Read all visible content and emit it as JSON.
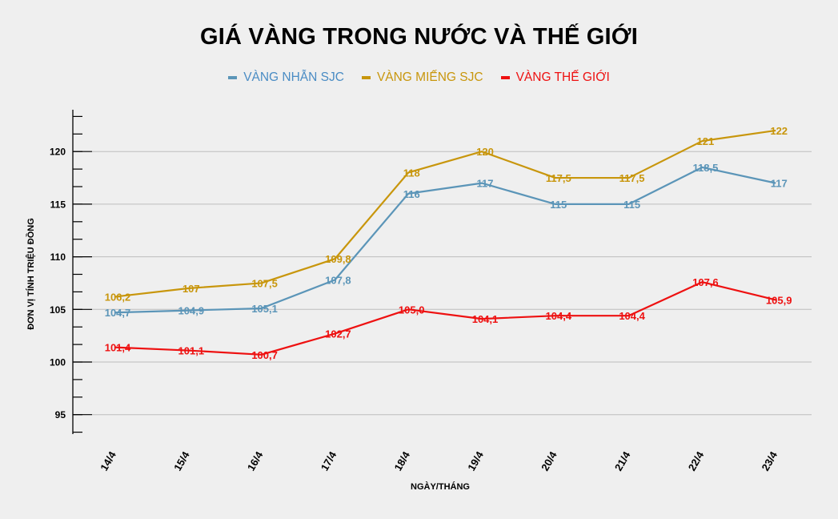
{
  "chart_data": {
    "type": "line",
    "title": "GIÁ VÀNG TRONG NƯỚC VÀ THẾ GIỚI",
    "xlabel": "NGÀY/THÁNG",
    "ylabel": "ĐƠN VỊ TÍNH TRIỆU ĐỒNG",
    "categories": [
      "14/4",
      "15/4",
      "16/4",
      "17/4",
      "18/4",
      "19/4",
      "20/4",
      "21/4",
      "22/4",
      "23/4"
    ],
    "yticks": [
      95,
      100,
      105,
      110,
      115,
      120
    ],
    "ylim": [
      93.3,
      123.3
    ],
    "grid": true,
    "legend_position": "top",
    "series": [
      {
        "name": "VÀNG NHẪN SJC",
        "color": "#5b95b8",
        "values": [
          104.7,
          104.9,
          105.1,
          107.8,
          116,
          117,
          115,
          115,
          118.5,
          117
        ],
        "labels": [
          "104,7",
          "104,9",
          "105,1",
          "107,8",
          "116",
          "117",
          "115",
          "115",
          "118,5",
          "117"
        ]
      },
      {
        "name": "VÀNG MIẾNG SJC",
        "color": "#c8960c",
        "values": [
          106.2,
          107,
          107.5,
          109.8,
          118,
          120,
          117.5,
          117.5,
          121,
          122
        ],
        "labels": [
          "106,2",
          "107",
          "107,5",
          "109,8",
          "118",
          "120",
          "117,5",
          "117,5",
          "121",
          "122"
        ]
      },
      {
        "name": "VÀNG THẾ GIỚI",
        "color": "#ee1111",
        "values": [
          101.4,
          101.1,
          100.7,
          102.7,
          105.0,
          104.1,
          104.4,
          104.4,
          107.6,
          105.9
        ],
        "labels": [
          "101,4",
          "101,1",
          "100,7",
          "102,7",
          "105,0",
          "104,1",
          "104,4",
          "104,4",
          "107,6",
          "105,9"
        ]
      }
    ]
  },
  "legend": {
    "items": [
      {
        "label": "VÀNG NHẪN SJC",
        "color": "#4a8cc4",
        "swatch": "#5b95b8"
      },
      {
        "label": "VÀNG MIẾNG SJC",
        "color": "#c8960c",
        "swatch": "#c8960c"
      },
      {
        "label": "VÀNG THẾ GIỚI",
        "color": "#ee1111",
        "swatch": "#ee1111"
      }
    ]
  }
}
